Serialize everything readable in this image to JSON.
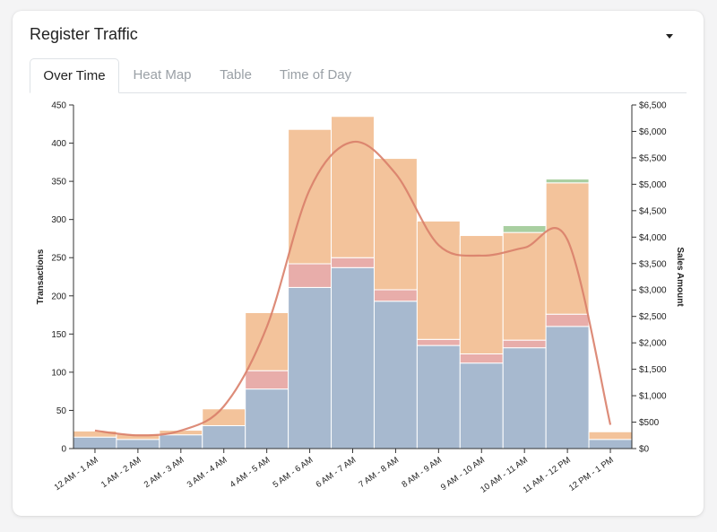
{
  "header": {
    "title": "Register Traffic",
    "menu_icon": "caret-down-icon"
  },
  "tabs": [
    {
      "label": "Over Time",
      "active": true
    },
    {
      "label": "Heat Map",
      "active": false
    },
    {
      "label": "Table",
      "active": false
    },
    {
      "label": "Time of Day",
      "active": false
    }
  ],
  "colors": {
    "blue": "#a7b9cf",
    "pink": "#e8adaa",
    "orange": "#f3c39b",
    "green": "#a9cfa1",
    "line": "#d97f6a"
  },
  "chart_data": {
    "type": "bar",
    "stacked": true,
    "categories": [
      "12 AM - 1 AM",
      "1 AM - 2 AM",
      "2 AM - 3 AM",
      "3 AM - 4 AM",
      "4 AM - 5 AM",
      "5 AM - 6 AM",
      "6 AM - 7 AM",
      "7 AM - 8 AM",
      "8 AM - 9 AM",
      "9 AM - 10 AM",
      "10 AM - 11 AM",
      "11 AM - 12 PM",
      "12 PM - 1 PM"
    ],
    "series": [
      {
        "color": "blue",
        "values": [
          15,
          12,
          18,
          30,
          78,
          211,
          237,
          193,
          135,
          112,
          132,
          160,
          12
        ]
      },
      {
        "color": "pink",
        "values": [
          0,
          0,
          0,
          0,
          24,
          31,
          13,
          15,
          8,
          12,
          10,
          16,
          0
        ]
      },
      {
        "color": "orange",
        "values": [
          8,
          7,
          6,
          22,
          76,
          176,
          185,
          172,
          155,
          155,
          141,
          172,
          10
        ]
      },
      {
        "color": "green",
        "values": [
          0,
          0,
          0,
          0,
          0,
          0,
          0,
          0,
          0,
          0,
          9,
          5,
          0
        ]
      }
    ],
    "line": {
      "axis": "right",
      "values": [
        340,
        250,
        340,
        800,
        2300,
        4900,
        5800,
        5200,
        3850,
        3650,
        3800,
        3950,
        450
      ]
    },
    "ylabel": "Transactions",
    "ylim": [
      0,
      450
    ],
    "yticks": [
      0,
      50,
      100,
      150,
      200,
      250,
      300,
      350,
      400,
      450
    ],
    "y2label": "Sales Amount",
    "y2lim": [
      0,
      6500
    ],
    "y2ticks": [
      "$0",
      "$500",
      "$1,000",
      "$1,500",
      "$2,000",
      "$2,500",
      "$3,000",
      "$3,500",
      "$4,000",
      "$4,500",
      "$5,000",
      "$5,500",
      "$6,000",
      "$6,500"
    ],
    "grid": false,
    "legend": "none"
  }
}
